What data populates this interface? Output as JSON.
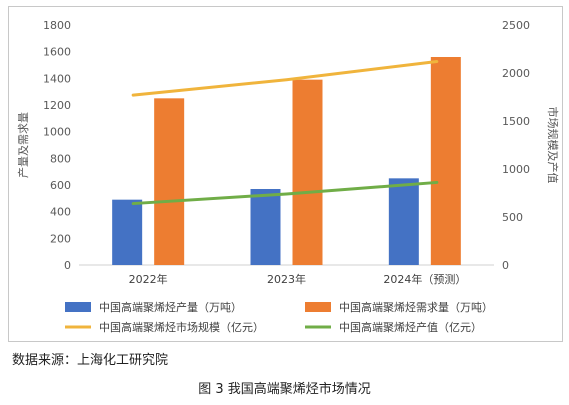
{
  "chart_data": {
    "type": "bar",
    "categories": [
      "2022年",
      "2023年",
      "2024年（预测）"
    ],
    "series": [
      {
        "name": "中国高端聚烯烃产量（万吨）",
        "kind": "bar",
        "axis": "left",
        "color": "#4472C4",
        "values": [
          490,
          570,
          650
        ]
      },
      {
        "name": "中国高端聚烯烃需求量（万吨）",
        "kind": "bar",
        "axis": "left",
        "color": "#ED7D31",
        "values": [
          1250,
          1390,
          1560
        ]
      },
      {
        "name": "中国高端聚烯烃市场规模（亿元）",
        "kind": "line",
        "axis": "right",
        "color": "#F0B43C",
        "values": [
          1770,
          1930,
          2120
        ]
      },
      {
        "name": "中国高端聚烯烃产值（亿元）",
        "kind": "line",
        "axis": "right",
        "color": "#70AD47",
        "values": [
          640,
          740,
          860
        ]
      }
    ],
    "ylabel": "产量及需求量",
    "y2label": "市场规模及产值",
    "ylim": [
      0,
      1800
    ],
    "y2lim": [
      0,
      2500
    ],
    "yticks": [
      0,
      200,
      400,
      600,
      800,
      1000,
      1200,
      1400,
      1600,
      1800
    ],
    "y2ticks": [
      0,
      500,
      1000,
      1500,
      2000,
      2500
    ],
    "grid": false,
    "legend_position": "bottom"
  },
  "source_note": "数据来源：上海化工研究院",
  "caption": "图 3  我国高端聚烯烃市场情况"
}
